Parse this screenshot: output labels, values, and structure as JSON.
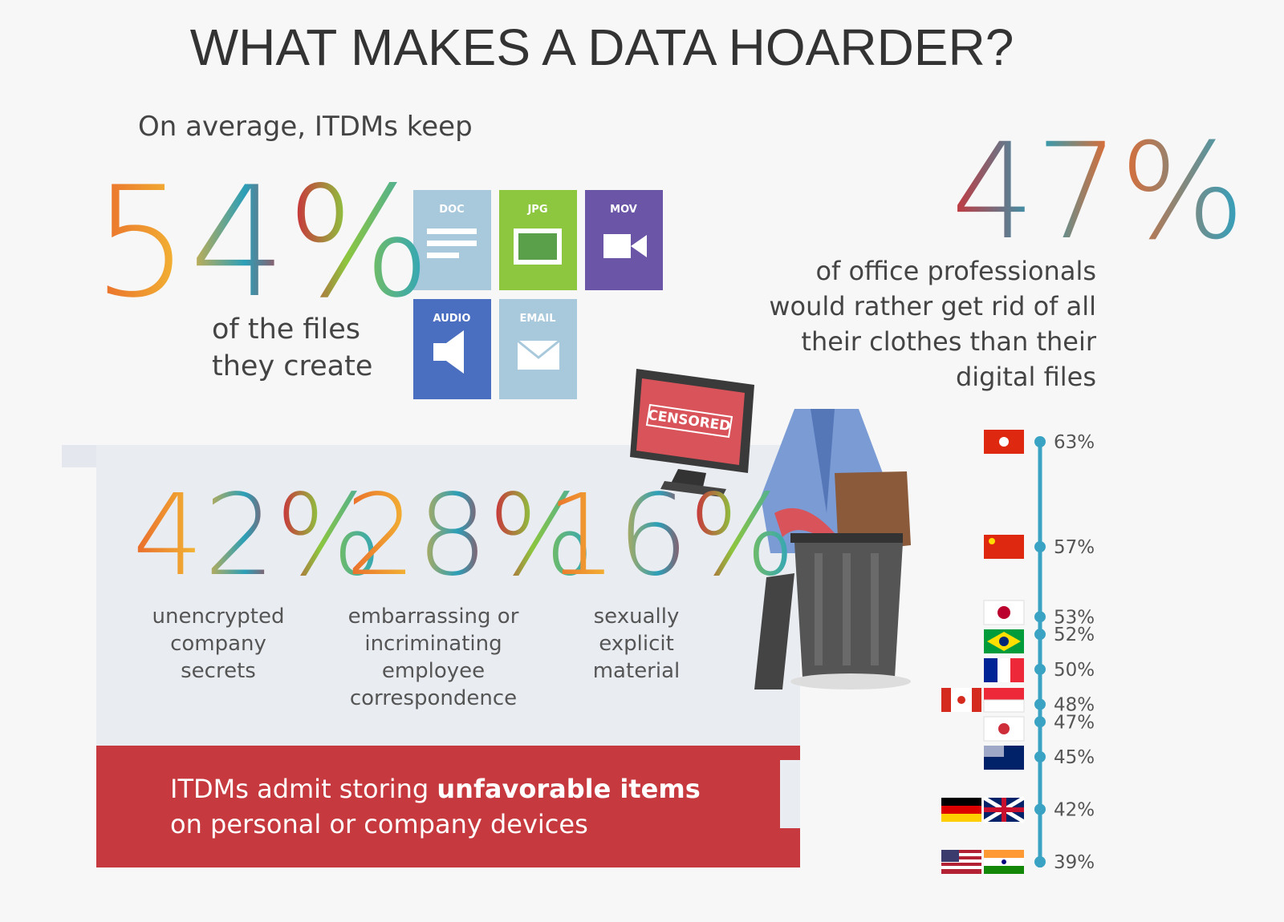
{
  "title": "WHAT MAKES A DATA HOARDER?",
  "left_stat": {
    "intro": "On average, ITDMs keep",
    "value": "54%",
    "caption": [
      "of the files",
      "they create"
    ]
  },
  "file_icons": [
    "DOC",
    "JPG",
    "MOV",
    "AUDIO",
    "EMAIL"
  ],
  "right_stat": {
    "value": "47%",
    "caption": [
      "of office professionals",
      "would rather get rid of all",
      "their clothes than their",
      "digital files"
    ]
  },
  "monitor_label": "CENSORED",
  "stats": [
    {
      "value": "42%",
      "caption": [
        "unencrypted",
        "company",
        "secrets"
      ]
    },
    {
      "value": "28%",
      "caption": [
        "embarrassing or",
        "incriminating",
        "employee",
        "correspondence"
      ]
    },
    {
      "value": "16%",
      "caption": [
        "sexually",
        "explicit",
        "material"
      ]
    }
  ],
  "banner": {
    "lead": "ITDMs admit storing",
    "emphasis": "unfavorable items",
    "rest": "on personal or company devices"
  },
  "country_scale": [
    {
      "value": 63,
      "label": "63%"
    },
    {
      "value": 57,
      "label": "57%"
    },
    {
      "value": 53,
      "label": "53%"
    },
    {
      "value": 52,
      "label": "52%"
    },
    {
      "value": 50,
      "label": "50%"
    },
    {
      "value": 48,
      "label": "48%"
    },
    {
      "value": 47,
      "label": "47%"
    },
    {
      "value": 45,
      "label": "45%"
    },
    {
      "value": 42,
      "label": "42%"
    },
    {
      "value": 39,
      "label": "39%"
    }
  ]
}
